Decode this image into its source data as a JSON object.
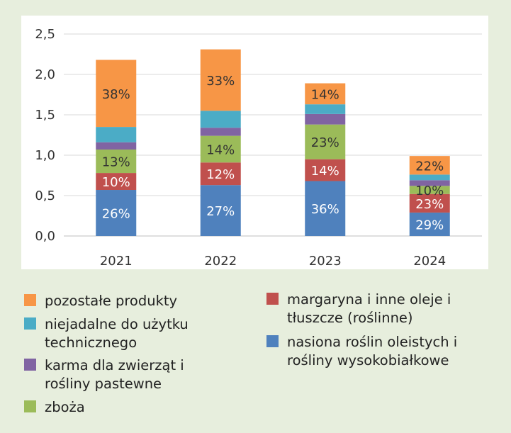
{
  "chart_data": {
    "type": "bar",
    "stacked": true,
    "title": "",
    "xlabel": "",
    "ylabel": "",
    "ylim": [
      0,
      2.5
    ],
    "yticks": [
      "0,0",
      "0,5",
      "1,0",
      "1,5",
      "2,0",
      "2,5"
    ],
    "ytick_values": [
      0,
      0.5,
      1.0,
      1.5,
      2.0,
      2.5
    ],
    "grid": true,
    "categories": [
      "2021",
      "2022",
      "2023",
      "2024"
    ],
    "series": [
      {
        "name": "nasiona roślin oleistych i rośliny wysokobiałkowe",
        "color": "#4f81bd",
        "values": [
          0.57,
          0.63,
          0.68,
          0.29
        ],
        "labels": [
          "26%",
          "27%",
          "36%",
          "29%"
        ]
      },
      {
        "name": "margaryna i inne oleje i tłuszcze (roślinne)",
        "color": "#c0504d",
        "values": [
          0.21,
          0.28,
          0.27,
          0.23
        ],
        "labels": [
          "10%",
          "12%",
          "14%",
          "23%"
        ]
      },
      {
        "name": "zboża",
        "color": "#9bbb59",
        "values": [
          0.29,
          0.33,
          0.43,
          0.1
        ],
        "labels": [
          "13%",
          "14%",
          "23%",
          "10%"
        ]
      },
      {
        "name": "karma dla zwierząt i rośliny pastewne",
        "color": "#8064a2",
        "values": [
          0.09,
          0.1,
          0.13,
          0.07
        ],
        "labels": [
          "",
          "",
          "",
          ""
        ]
      },
      {
        "name": "niejadalne do użytku technicznego",
        "color": "#4bacc6",
        "values": [
          0.19,
          0.21,
          0.12,
          0.07
        ],
        "labels": [
          "",
          "",
          "",
          ""
        ]
      },
      {
        "name": "pozostałe produkty",
        "color": "#f79646",
        "values": [
          0.83,
          0.76,
          0.26,
          0.23
        ],
        "labels": [
          "38%",
          "33%",
          "14%",
          "22%"
        ]
      }
    ]
  },
  "legend": {
    "items": [
      {
        "text": "pozostałe produkty",
        "color": "#f79646"
      },
      {
        "text": "niejadalne do użytku technicznego",
        "color": "#4bacc6"
      },
      {
        "text": "karma dla zwierząt i rośliny pastewne",
        "color": "#8064a2"
      },
      {
        "text": "zboża",
        "color": "#9bbb59"
      },
      {
        "text": "margaryna i inne oleje i tłuszcze (roślinne)",
        "color": "#c0504d"
      },
      {
        "text": "nasiona roślin oleistych i rośliny wysokobiałkowe",
        "color": "#4f81bd"
      }
    ]
  }
}
